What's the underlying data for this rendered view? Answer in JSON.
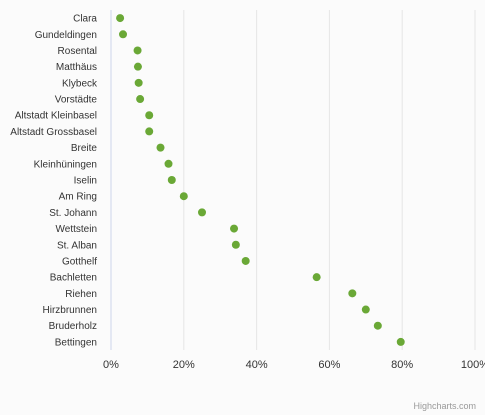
{
  "chart_data": {
    "type": "scatter",
    "orientation": "horizontal",
    "title": "",
    "xlabel": "",
    "ylabel": "",
    "categories": [
      "Clara",
      "Gundeldingen",
      "Rosental",
      "Matthäus",
      "Klybeck",
      "Vorstädte",
      "Altstadt Kleinbasel",
      "Altstadt Grossbasel",
      "Breite",
      "Kleinhüningen",
      "Iselin",
      "Am Ring",
      "St. Johann",
      "Wettstein",
      "St. Alban",
      "Gotthelf",
      "Bachletten",
      "Riehen",
      "Hirzbrunnen",
      "Bruderholz",
      "Bettingen"
    ],
    "values": [
      2.5,
      3.3,
      7.3,
      7.4,
      7.6,
      8.0,
      10.5,
      10.5,
      13.6,
      15.8,
      16.7,
      20.0,
      25.0,
      33.8,
      34.3,
      37.0,
      56.5,
      66.3,
      70.0,
      73.3,
      79.6
    ],
    "xlim": [
      0,
      100
    ],
    "xticks": [
      0,
      20,
      40,
      60,
      80,
      100
    ],
    "tick_suffix": "%",
    "grid": "vertical",
    "legend": "none",
    "point_color": "#6aa836",
    "grid_color": "#e6e6e6",
    "axis_color": "#ccd6eb"
  },
  "credits": "Highcharts.com"
}
